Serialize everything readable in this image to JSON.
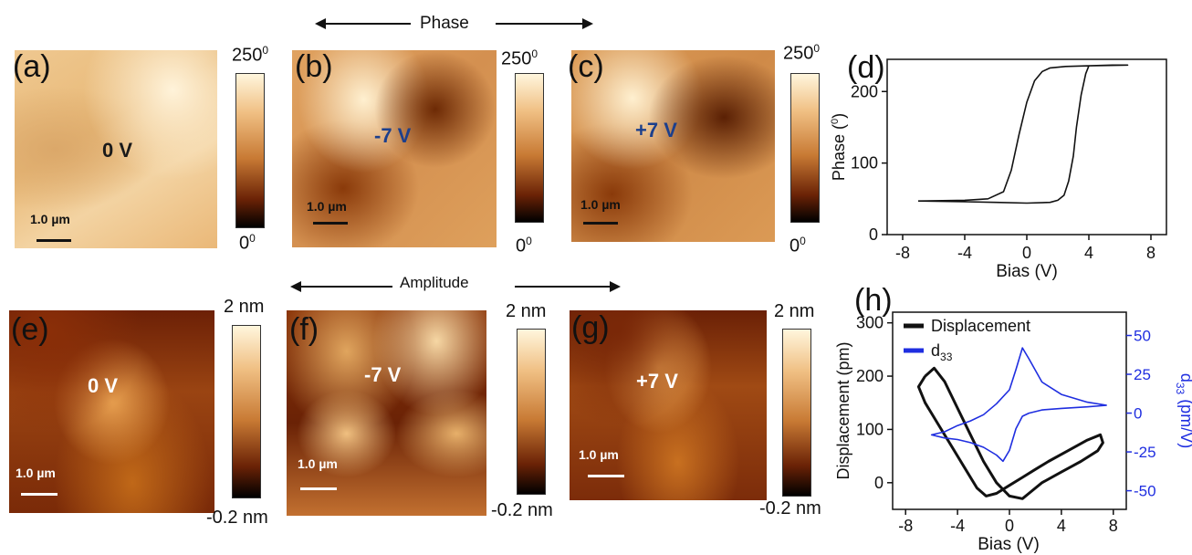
{
  "headers": {
    "phase": "Phase",
    "amplitude": "Amplitude"
  },
  "panels": {
    "a": {
      "label": "(a)",
      "bias": "0 V",
      "scale": "1.0 µm"
    },
    "b": {
      "label": "(b)",
      "bias": "-7 V",
      "scale": "1.0 µm"
    },
    "c": {
      "label": "(c)",
      "bias": "+7 V",
      "scale": "1.0 µm"
    },
    "d": {
      "label": "(d)"
    },
    "e": {
      "label": "(e)",
      "bias": "0 V",
      "scale": "1.0 µm"
    },
    "f": {
      "label": "(f)",
      "bias": "-7 V",
      "scale": "1.0 µm"
    },
    "g": {
      "label": "(g)",
      "bias": "+7 V",
      "scale": "1.0 µm"
    },
    "h": {
      "label": "(h)"
    }
  },
  "colorbars": {
    "phase": {
      "max_base": "250",
      "max_sup": "0",
      "min_base": "0",
      "min_sup": "0"
    },
    "amplitude": {
      "max": "2 nm",
      "min": "-0.2 nm"
    }
  },
  "colors": {
    "afm_dark": "#3a0d00",
    "afm_mid": "#b0601a",
    "afm_light": "#fff6dd",
    "black_curve": "#111111",
    "blue_curve": "#1f2ee0",
    "bias_label_blue": "#1c3f8c"
  },
  "chart_data": [
    {
      "type": "line",
      "panel": "(d)",
      "title": "",
      "xlabel": "Bias (V)",
      "ylabel_base": "Phase (",
      "ylabel_sup": "0",
      "ylabel_end": ")",
      "xlim": [
        -9,
        9
      ],
      "ylim": [
        0,
        245
      ],
      "xticks": [
        -8,
        -4,
        0,
        4,
        8
      ],
      "yticks": [
        0,
        100,
        200
      ],
      "grid": false,
      "series": [
        {
          "color": "#111111",
          "x": [
            -7,
            -4,
            -2.5,
            -1.5,
            -1.0,
            -0.5,
            0,
            0.5,
            1.0,
            1.5,
            2.5,
            4,
            5.5,
            6.5,
            4,
            3.8,
            3.5,
            3.2,
            3.0,
            2.7,
            2.4,
            2.0,
            1.5,
            0,
            -2,
            -4,
            -7
          ],
          "y": [
            47,
            48,
            50,
            60,
            90,
            140,
            185,
            215,
            228,
            233,
            235,
            236,
            237,
            237,
            236,
            225,
            195,
            150,
            110,
            75,
            55,
            48,
            45,
            44,
            45,
            46,
            47
          ]
        }
      ]
    },
    {
      "type": "line",
      "panel": "(h)",
      "title": "",
      "xlabel": "Bias (V)",
      "ylabel_left": "Displacement (pm)",
      "ylabel_right_base": "d",
      "ylabel_right_sub": "33",
      "ylabel_right_end": " (pm/V)",
      "xlim": [
        -9,
        9
      ],
      "ylim_left": [
        -50,
        320
      ],
      "ylim_right": [
        -62,
        65
      ],
      "xticks": [
        -8,
        -4,
        0,
        4,
        8
      ],
      "yticks_left": [
        0,
        100,
        200,
        300
      ],
      "yticks_right": [
        -50,
        -25,
        0,
        25,
        50
      ],
      "grid": false,
      "legend": {
        "position": "top-left",
        "entries": [
          {
            "base": "Displacement",
            "sub": "",
            "color": "#111111"
          },
          {
            "base": "d",
            "sub": "33",
            "color": "#1f2ee0"
          }
        ]
      },
      "series": [
        {
          "name": "Displacement",
          "axis": "left",
          "color": "#111111",
          "x": [
            -6.5,
            -7,
            -6.5,
            -5.5,
            -4.5,
            -3.5,
            -2.5,
            -1.8,
            -1,
            0,
            1,
            2,
            3,
            4.5,
            6,
            7,
            7.2,
            6.8,
            5.5,
            4,
            2.5,
            1.5,
            1,
            0,
            -1,
            -2,
            -3,
            -4,
            -5,
            -5.8,
            -6.5
          ],
          "y": [
            200,
            180,
            150,
            110,
            70,
            30,
            -10,
            -25,
            -20,
            -5,
            10,
            25,
            40,
            60,
            80,
            90,
            75,
            60,
            40,
            20,
            0,
            -20,
            -30,
            -25,
            0,
            40,
            90,
            140,
            190,
            215,
            200
          ]
        },
        {
          "name": "d33",
          "axis": "right",
          "color": "#1f2ee0",
          "x": [
            7.5,
            6,
            4,
            2.5,
            1.5,
            1,
            0.5,
            0,
            -1,
            -2,
            -3,
            -4,
            -5,
            -6,
            -5,
            -4,
            -3,
            -2,
            -1,
            -0.5,
            0,
            0.5,
            1,
            1.5,
            2.5,
            4,
            6,
            7.5
          ],
          "y": [
            5,
            7,
            12,
            20,
            35,
            42,
            28,
            15,
            6,
            -1,
            -5,
            -8,
            -12,
            -14,
            -16,
            -17,
            -19,
            -22,
            -27,
            -31,
            -24,
            -10,
            -2,
            0,
            2,
            3,
            4,
            5
          ]
        }
      ]
    }
  ]
}
